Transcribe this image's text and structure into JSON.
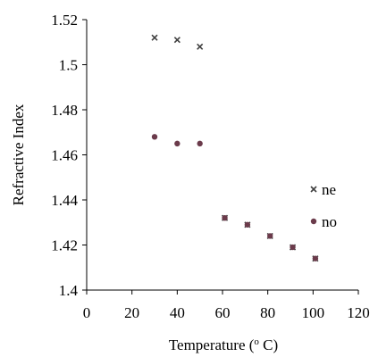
{
  "chart_data": {
    "type": "scatter",
    "title": "",
    "xlabel": "Temperature (",
    "xlabel_sup": "o",
    "xlabel_tail": " C)",
    "ylabel": "Refractive Index",
    "xlim": [
      0,
      120
    ],
    "ylim": [
      1.4,
      1.52
    ],
    "xticks": [
      0,
      20,
      40,
      60,
      80,
      100,
      120
    ],
    "yticks": [
      1.4,
      1.42,
      1.44,
      1.46,
      1.48,
      1.5,
      1.52
    ],
    "xtick_labels": [
      "0",
      "20",
      "40",
      "60",
      "80",
      "100",
      "120"
    ],
    "ytick_labels": [
      "1.4",
      "1.42",
      "1.44",
      "1.46",
      "1.48",
      "1.5",
      "1.52"
    ],
    "grid": false,
    "legend_position": "right",
    "series": [
      {
        "name": "ne",
        "marker": "cross",
        "color": "#404040",
        "points": [
          [
            30,
            1.512
          ],
          [
            40,
            1.511
          ],
          [
            50,
            1.508
          ],
          [
            61,
            1.432
          ],
          [
            71,
            1.429
          ],
          [
            81,
            1.424
          ],
          [
            91,
            1.419
          ],
          [
            101,
            1.414
          ]
        ]
      },
      {
        "name": "no",
        "marker": "dot",
        "color": "#6b3b4b",
        "points": [
          [
            30,
            1.468
          ],
          [
            40,
            1.465
          ],
          [
            50,
            1.465
          ],
          [
            61,
            1.432
          ],
          [
            71,
            1.429
          ],
          [
            81,
            1.424
          ],
          [
            91,
            1.419
          ],
          [
            101,
            1.414
          ]
        ]
      }
    ]
  }
}
